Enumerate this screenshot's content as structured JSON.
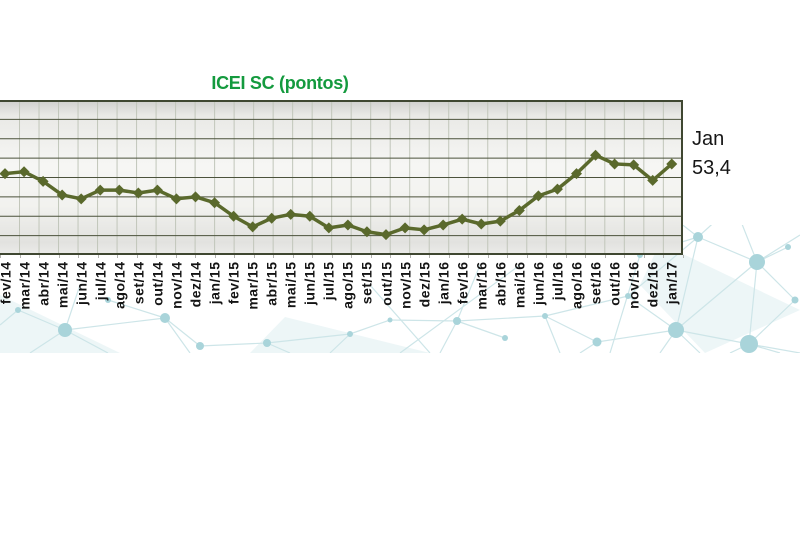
{
  "page": {
    "background": "#ffffff"
  },
  "chart": {
    "title": "ICEI SC (pontos)",
    "title_color": "#149a3e",
    "annotation": {
      "month_label": "Jan",
      "value_label": "53,4"
    }
  },
  "chart_data": {
    "type": "line",
    "title": "ICEI SC (pontos)",
    "xlabel": "",
    "ylabel": "",
    "categories": [
      "fev/14",
      "mar/14",
      "abr/14",
      "mai/14",
      "jun/14",
      "jul/14",
      "ago/14",
      "set/14",
      "out/14",
      "nov/14",
      "dez/14",
      "jan/15",
      "fev/15",
      "mar/15",
      "abr/15",
      "mai/15",
      "jun/15",
      "jul/15",
      "ago/15",
      "set/15",
      "out/15",
      "nov/15",
      "dez/15",
      "jan/16",
      "fev/16",
      "mar/16",
      "abr/16",
      "mai/16",
      "jun/16",
      "jul/16",
      "ago/16",
      "set/16",
      "out/16",
      "nov/16",
      "dez/16",
      "jan/17"
    ],
    "series": [
      {
        "name": "ICEI SC",
        "values": [
          52.4,
          52.6,
          51.6,
          50.2,
          49.8,
          50.7,
          50.7,
          50.4,
          50.7,
          49.8,
          50.0,
          49.4,
          48.0,
          46.9,
          47.8,
          48.2,
          48.0,
          46.8,
          47.1,
          46.4,
          46.1,
          46.8,
          46.6,
          47.1,
          47.7,
          47.2,
          47.5,
          48.6,
          50.1,
          50.8,
          52.4,
          54.3,
          53.4,
          53.3,
          51.7,
          53.4
        ]
      }
    ],
    "ylim": [
      44,
      60
    ],
    "ygrid_step": 2,
    "grid": true,
    "legend_position": "none",
    "last_point_annotation": "Jan 53,4",
    "line_color": "#5a692c",
    "marker": "diamond",
    "h_grid_color": "#4b523b",
    "v_grid_color": "#c1c6ba",
    "border_color": "#3f4731"
  }
}
